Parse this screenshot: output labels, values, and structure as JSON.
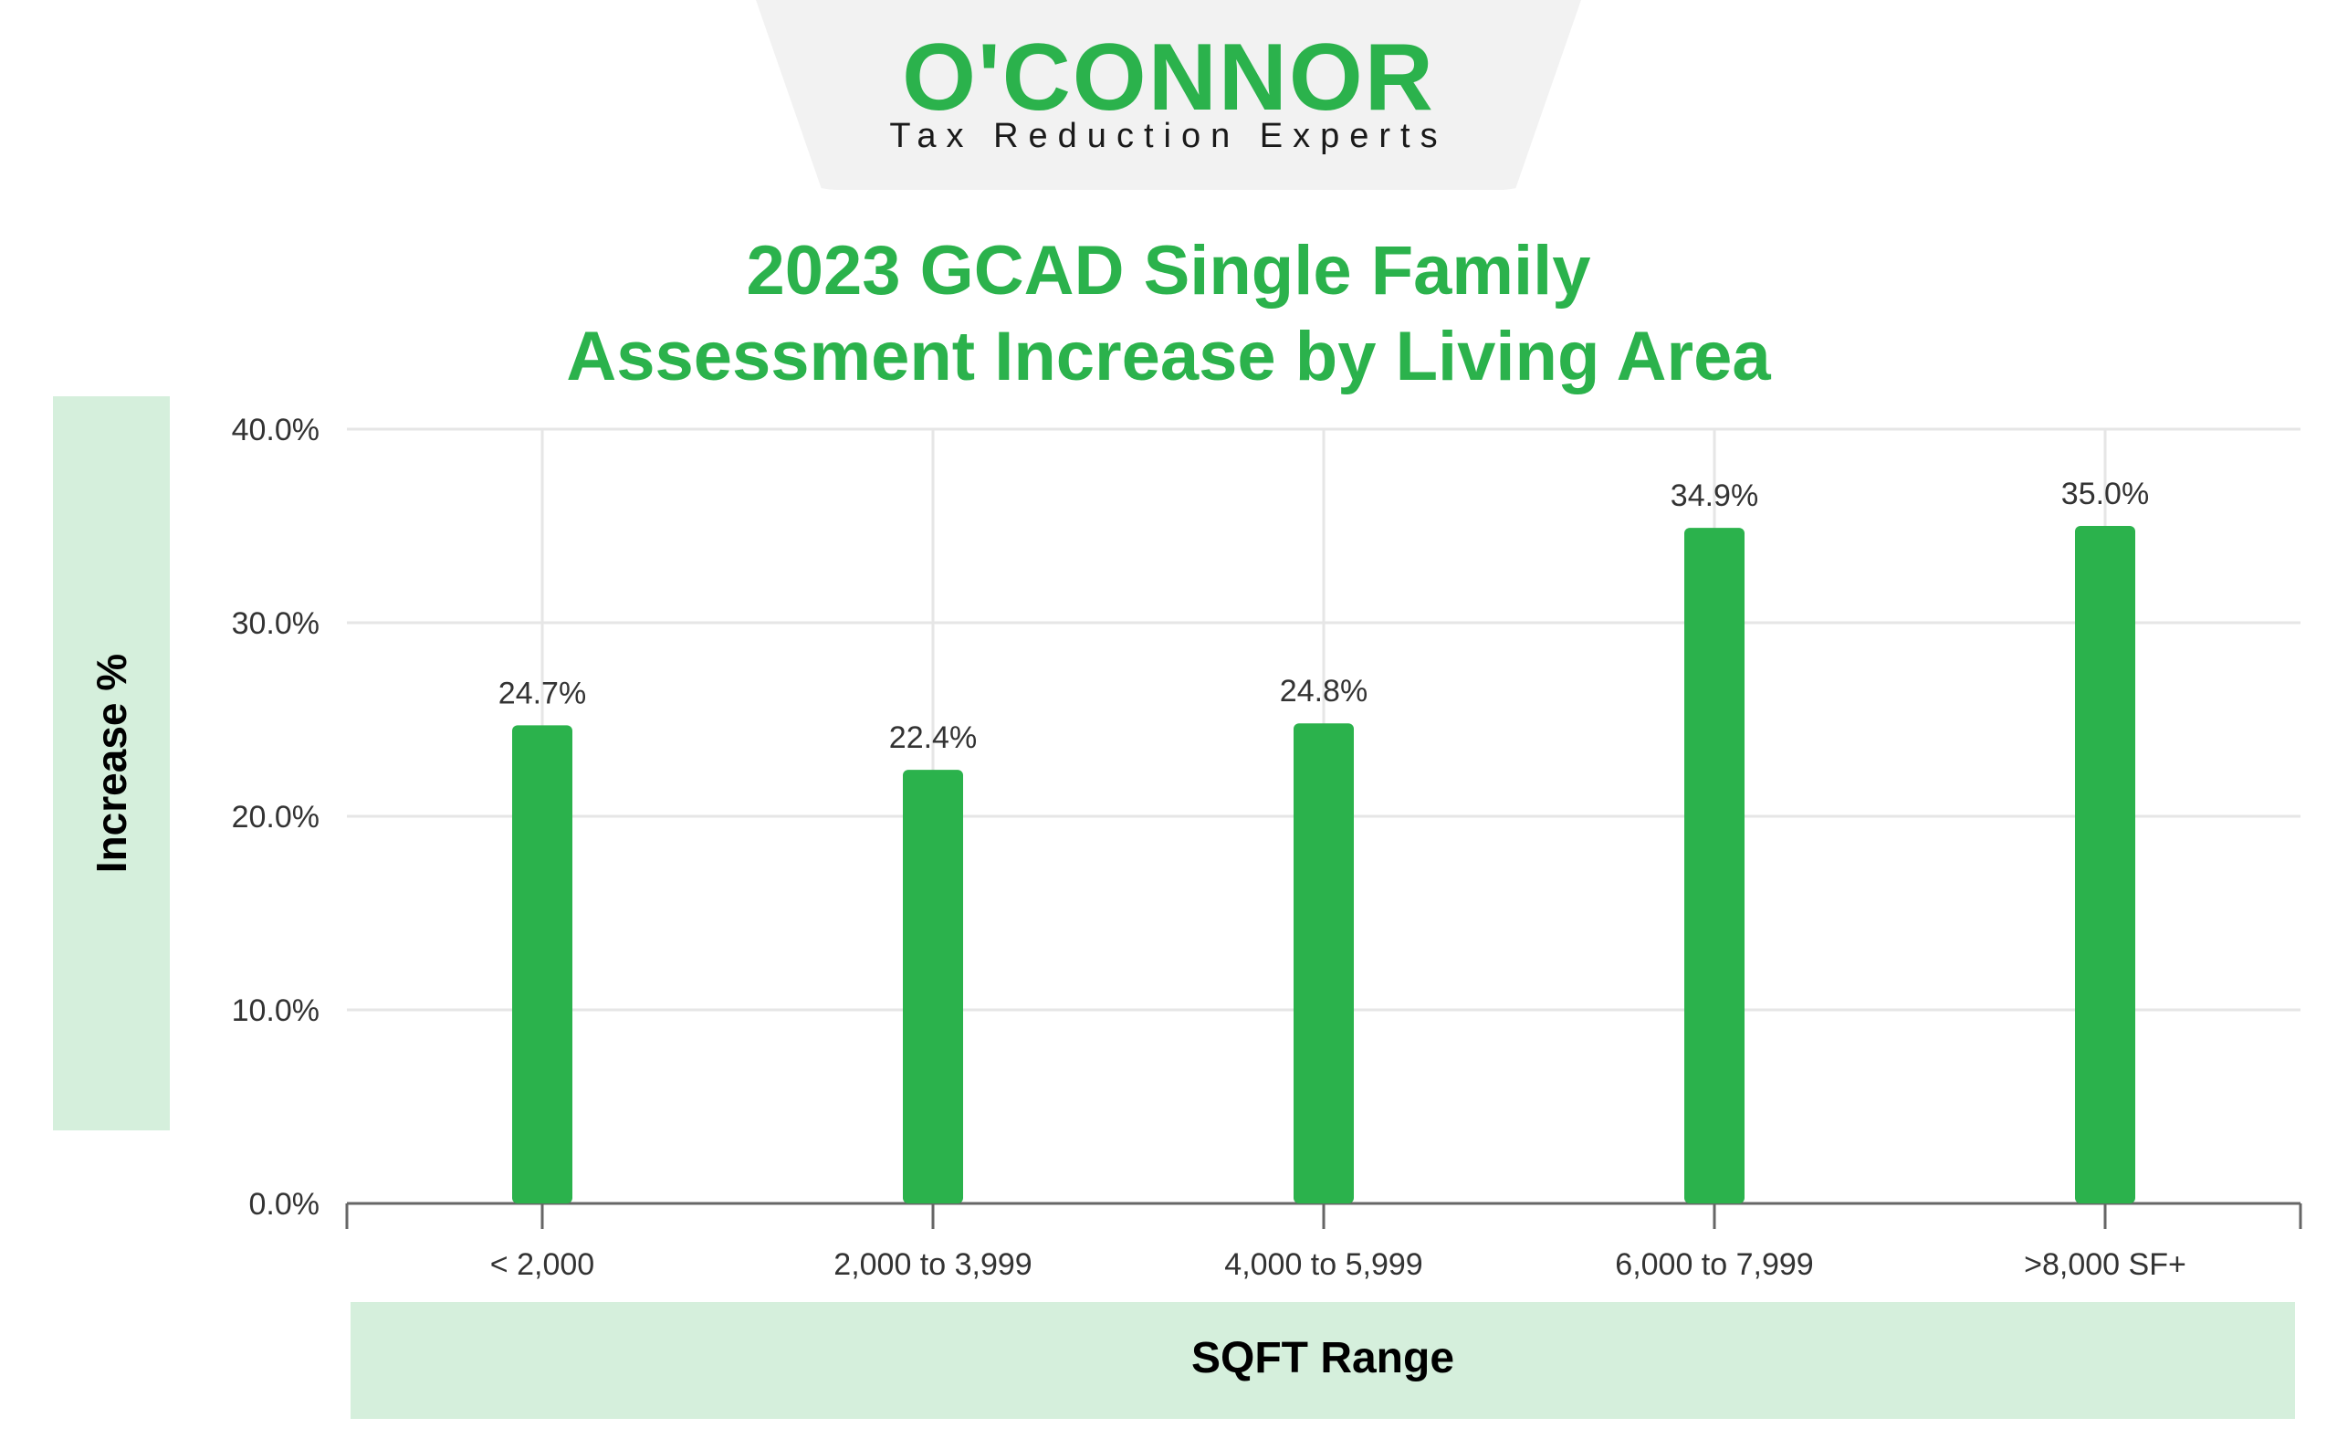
{
  "logo": {
    "wordmark": "O'CONNOR",
    "tagline": "Tax Reduction Experts"
  },
  "colors": {
    "accent": "#2bb24c",
    "label_box": "#d5efdc",
    "grid": "#e6e6e6"
  },
  "chart_data": {
    "type": "bar",
    "title_lines": [
      "2023 GCAD Single Family",
      "Assessment Increase by Living Area"
    ],
    "xlabel": "SQFT Range",
    "ylabel": "Increase %",
    "categories": [
      "< 2,000",
      "2,000 to 3,999",
      "4,000 to 5,999",
      "6,000 to 7,999",
      ">8,000 SF+"
    ],
    "values": [
      24.7,
      22.4,
      24.8,
      34.9,
      35.0
    ],
    "data_labels": [
      "24.7%",
      "22.4%",
      "24.8%",
      "34.9%",
      "35.0%"
    ],
    "ylim": [
      0,
      40
    ],
    "yticks": [
      "0.0%",
      "10.0%",
      "20.0%",
      "30.0%",
      "40.0%"
    ],
    "grid": true,
    "legend": "none"
  }
}
